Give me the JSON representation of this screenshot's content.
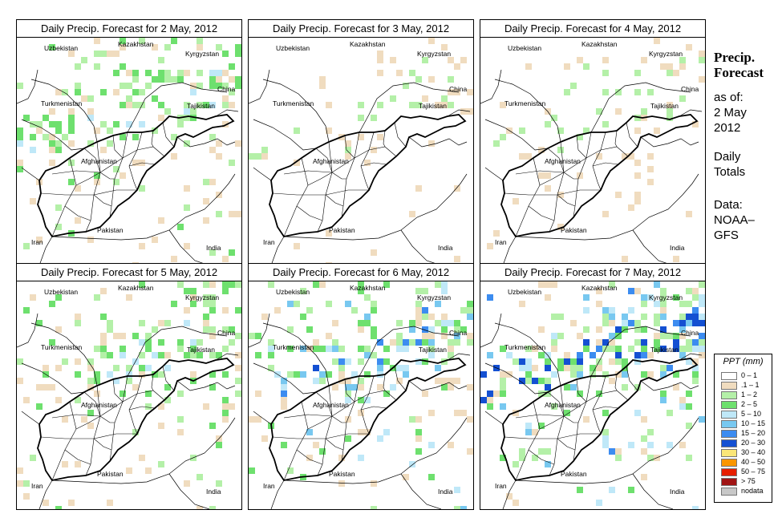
{
  "panels": [
    {
      "title": "Daily Precip. Forecast for  2 May, 2012",
      "intensity": 0.55
    },
    {
      "title": "Daily Precip. Forecast for  3 May, 2012",
      "intensity": 0.22
    },
    {
      "title": "Daily Precip. Forecast for  4 May, 2012",
      "intensity": 0.3
    },
    {
      "title": "Daily Precip. Forecast for  5 May, 2012",
      "intensity": 0.6
    },
    {
      "title": "Daily Precip. Forecast for  6 May, 2012",
      "intensity": 0.75
    },
    {
      "title": "Daily Precip. Forecast for  7 May, 2012",
      "intensity": 0.85
    }
  ],
  "map_labels": {
    "uzbekistan": "Uzbekistan",
    "kazakhstan": "Kazakhstan",
    "kyrgyzstan": "Kyrgyzstan",
    "turkmenistan": "Turkmenistan",
    "tajikistan": "Tajikistan",
    "china": "China",
    "afghanistan": "Afghanistan",
    "pakistan": "Pakistan",
    "iran": "Iran",
    "india": "India"
  },
  "side": {
    "title_line1": "Precip.",
    "title_line2": "Forecast",
    "asof": "as of:",
    "date1": "2 May",
    "date2": "2012",
    "daily1": "Daily",
    "daily2": "Totals",
    "data1": "Data:",
    "data2": "NOAA–",
    "data3": "GFS"
  },
  "legend": {
    "title": "PPT (mm)",
    "items": [
      {
        "label": "0 – 1",
        "color": "#ffffff"
      },
      {
        "label": ".1 – 1",
        "color": "#f0dcbf"
      },
      {
        "label": "1 – 2",
        "color": "#b4f0a8"
      },
      {
        "label": "2 – 5",
        "color": "#6ee06e"
      },
      {
        "label": "5 – 10",
        "color": "#bfe8f8"
      },
      {
        "label": "10 – 15",
        "color": "#78c8f0"
      },
      {
        "label": "15 – 20",
        "color": "#3c8cf0"
      },
      {
        "label": "20 – 30",
        "color": "#1450d2"
      },
      {
        "label": "30 – 40",
        "color": "#fae678"
      },
      {
        "label": "40 – 50",
        "color": "#fa9600"
      },
      {
        "label": "50 – 75",
        "color": "#e61e00"
      },
      {
        "label": "> 75",
        "color": "#a01414"
      },
      {
        "label": "nodata",
        "color": "#c8c8c8"
      }
    ]
  }
}
